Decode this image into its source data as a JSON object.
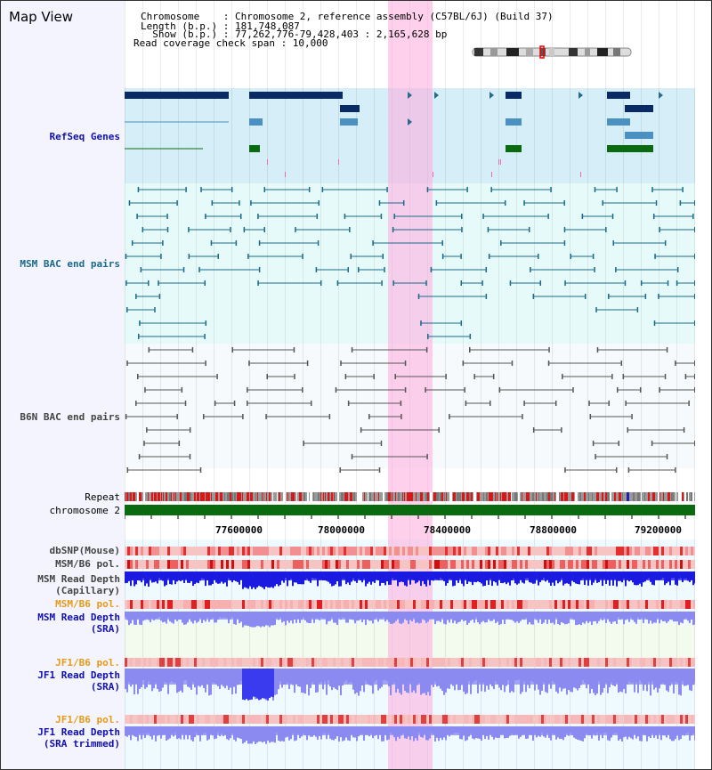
{
  "title": "Map View",
  "header": {
    "chromosome_line": "Chromosome    : Chromosome 2, reference assembly (C57BL/6J) (Build 37)",
    "length_line": "Length (b.p.) : 181,748,087",
    "show_line": "  Show (b.p.) : 77,262,776-79,428,403 : 2,165,628 bp",
    "coverage_line": "Read coverage check span : 10,000"
  },
  "tracks": {
    "refseq": "RefSeq Genes",
    "msm_bac": "MSM BAC end pairs",
    "b6n_bac": "B6N BAC end pairs",
    "repeat": "Repeat",
    "chromosome": "chromosome 2",
    "dbsnp": "dbSNP(Mouse)",
    "msm_b6_pol_1": "MSM/B6 pol.",
    "msm_depth_cap_1": "MSM Read Depth",
    "msm_depth_cap_2": "(Capillary)",
    "msm_b6_pol_2": "MSM/B6 pol.",
    "msm_depth_sra_1": "MSM Read Depth",
    "msm_depth_sra_2": "(SRA)",
    "jf1_pol_1": "JF1/B6 pol.",
    "jf1_depth_sra_1": "JF1 Read Depth",
    "jf1_depth_sra_2": "(SRA)",
    "jf1_pol_2": "JF1/B6 pol.",
    "jf1_depth_trim_1": "JF1 Read Depth",
    "jf1_depth_trim_2": "(SRA trimmed)"
  },
  "axis_ticks": [
    "77600000",
    "78000000",
    "78400000",
    "78800000",
    "79200000"
  ],
  "colors": {
    "refseq_dark": "#0a2a66",
    "refseq_light": "#4a90c0",
    "refseq_green": "#0a6a10",
    "highlight": "#ffaadc",
    "chromosome_bar": "#0a6a10",
    "depth_blue": "#1a1ae0",
    "depth_light": "#8a8af0"
  }
}
